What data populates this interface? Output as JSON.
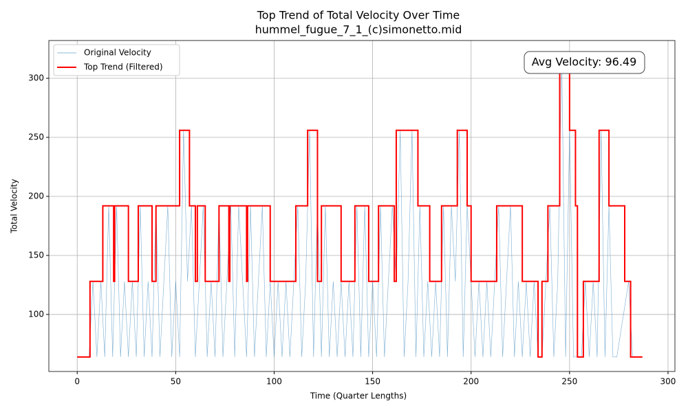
{
  "chart_data": {
    "type": "line",
    "title": "Top Trend of Total Velocity Over Time",
    "subtitle": "hummel_fugue_7_1_(c)simonetto.mid",
    "x_label": "Time (Quarter Lengths)",
    "y_label": "Total Velocity",
    "annotation": "Avg Velocity: 96.49",
    "xlim": [
      -14.4,
      303.5
    ],
    "ylim": [
      51.7,
      332
    ],
    "xticks": [
      0,
      50,
      100,
      150,
      200,
      250,
      300
    ],
    "yticks": [
      100,
      150,
      200,
      250,
      300
    ],
    "grid": true,
    "legend": "upper left",
    "series": [
      {
        "name": "Original Velocity",
        "color": "#1f77b4",
        "x": [
          0,
          2,
          4,
          6,
          8,
          10,
          12,
          14,
          16,
          18,
          20,
          22,
          24,
          26,
          28,
          30,
          32,
          34,
          36,
          38,
          40,
          42,
          44,
          46,
          48,
          50,
          52,
          54,
          56,
          58,
          60,
          62,
          64,
          66,
          68,
          70,
          72,
          74,
          76,
          78,
          80,
          82,
          84,
          86,
          88,
          90,
          92,
          94,
          96,
          98,
          100,
          102,
          104,
          106,
          108,
          110,
          112,
          114,
          116,
          118,
          120,
          122,
          124,
          126,
          128,
          130,
          132,
          134,
          136,
          138,
          140,
          142,
          144,
          146,
          148,
          150,
          152,
          154,
          156,
          158,
          160,
          162,
          164,
          166,
          168,
          170,
          172,
          174,
          176,
          178,
          180,
          182,
          184,
          186,
          188,
          190,
          192,
          194,
          196,
          198,
          200,
          202,
          204,
          206,
          208,
          210,
          212,
          214,
          216,
          218,
          220,
          222,
          224,
          226,
          228,
          230,
          232,
          234,
          236,
          238,
          240,
          242,
          244,
          246,
          248,
          250,
          252,
          254,
          256,
          258,
          260,
          262,
          264,
          266,
          268,
          270,
          272,
          274,
          280,
          282
        ],
        "values": [
          64,
          64,
          64,
          64,
          128,
          64,
          128,
          64,
          192,
          64,
          192,
          64,
          128,
          64,
          128,
          64,
          192,
          64,
          128,
          64,
          192,
          64,
          128,
          192,
          64,
          128,
          64,
          256,
          128,
          192,
          64,
          128,
          192,
          64,
          128,
          64,
          192,
          64,
          128,
          192,
          64,
          192,
          128,
          64,
          192,
          64,
          128,
          192,
          64,
          128,
          64,
          128,
          64,
          128,
          64,
          128,
          192,
          64,
          128,
          256,
          64,
          192,
          64,
          192,
          64,
          128,
          64,
          128,
          64,
          128,
          64,
          192,
          64,
          192,
          64,
          128,
          64,
          192,
          64,
          128,
          192,
          128,
          256,
          64,
          128,
          256,
          64,
          192,
          64,
          128,
          64,
          128,
          64,
          192,
          64,
          192,
          128,
          256,
          64,
          192,
          128,
          64,
          128,
          64,
          128,
          64,
          128,
          192,
          64,
          128,
          192,
          64,
          128,
          64,
          128,
          64,
          128,
          64,
          64,
          128,
          192,
          64,
          128,
          320,
          64,
          256,
          64,
          64,
          64,
          128,
          64,
          128,
          64,
          256,
          64,
          192,
          64,
          64,
          128,
          64
        ]
      },
      {
        "name": "Top Trend (Filtered)",
        "color": "#ff0000",
        "x": [
          0,
          6.5,
          6.5,
          13,
          13,
          18.5,
          18.5,
          19,
          19,
          26,
          26,
          31,
          31,
          38,
          38,
          40,
          40,
          52,
          52,
          57,
          57,
          60,
          60,
          61,
          61,
          65,
          65,
          72,
          72,
          77,
          77,
          77.5,
          77.5,
          86,
          86,
          86.5,
          86.5,
          98,
          98,
          111,
          111,
          117,
          117,
          122,
          122,
          124,
          124,
          134,
          134,
          141,
          141,
          148,
          148,
          153,
          153,
          161,
          161,
          162,
          162,
          173,
          173,
          179,
          179,
          185,
          185,
          193,
          193,
          198,
          198,
          200,
          200,
          213,
          213,
          226,
          226,
          234,
          234,
          236,
          236,
          239,
          239,
          245,
          245,
          250,
          250,
          253,
          253,
          254,
          254,
          257,
          257,
          265,
          265,
          270,
          270,
          278,
          278,
          281,
          281,
          287
        ],
        "values": [
          64,
          64,
          128,
          128,
          192,
          192,
          128,
          128,
          192,
          192,
          128,
          128,
          192,
          192,
          128,
          128,
          192,
          192,
          256,
          256,
          192,
          192,
          128,
          128,
          192,
          192,
          128,
          128,
          192,
          192,
          128,
          128,
          192,
          192,
          128,
          128,
          192,
          192,
          128,
          128,
          192,
          192,
          256,
          256,
          128,
          128,
          192,
          192,
          128,
          128,
          192,
          192,
          128,
          128,
          192,
          192,
          128,
          128,
          256,
          256,
          192,
          192,
          128,
          128,
          192,
          192,
          256,
          256,
          192,
          192,
          128,
          128,
          192,
          192,
          128,
          128,
          64,
          64,
          128,
          128,
          192,
          192,
          320,
          320,
          256,
          256,
          192,
          192,
          64,
          64,
          128,
          128,
          256,
          256,
          192,
          192,
          128,
          128,
          64,
          64
        ]
      }
    ]
  }
}
